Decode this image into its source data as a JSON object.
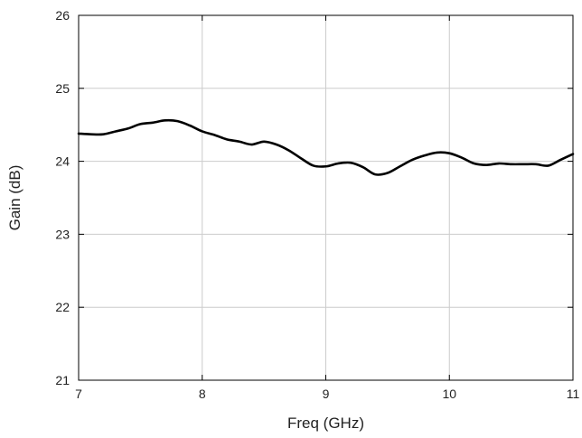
{
  "chart_data": {
    "type": "line",
    "title": "",
    "xlabel": "Freq (GHz)",
    "ylabel": "Gain (dB)",
    "xlim": [
      7,
      11
    ],
    "ylim": [
      21,
      26
    ],
    "xticks": [
      7,
      8,
      9,
      10,
      11
    ],
    "yticks": [
      21,
      22,
      23,
      24,
      25,
      26
    ],
    "xtick_labels": [
      "7",
      "8",
      "9",
      "10",
      "11"
    ],
    "ytick_labels": [
      "21",
      "22",
      "23",
      "24",
      "25",
      "26"
    ],
    "grid": true,
    "line_color": "#000000",
    "grid_color": "#cccccc",
    "series": [
      {
        "x": [
          7.0,
          7.1,
          7.2,
          7.3,
          7.4,
          7.5,
          7.6,
          7.7,
          7.8,
          7.9,
          8.0,
          8.1,
          8.2,
          8.3,
          8.4,
          8.5,
          8.6,
          8.7,
          8.8,
          8.9,
          9.0,
          9.1,
          9.2,
          9.3,
          9.4,
          9.5,
          9.6,
          9.7,
          9.8,
          9.9,
          10.0,
          10.1,
          10.2,
          10.3,
          10.4,
          10.5,
          10.6,
          10.7,
          10.8,
          10.9,
          11.0
        ],
        "values": [
          24.38,
          24.37,
          24.37,
          24.41,
          24.45,
          24.51,
          24.53,
          24.56,
          24.55,
          24.49,
          24.41,
          24.36,
          24.3,
          24.27,
          24.23,
          24.27,
          24.23,
          24.15,
          24.04,
          23.94,
          23.93,
          23.97,
          23.98,
          23.92,
          23.82,
          23.84,
          23.93,
          24.02,
          24.08,
          24.12,
          24.11,
          24.05,
          23.97,
          23.95,
          23.97,
          23.96,
          23.96,
          23.96,
          23.94,
          24.02,
          24.1
        ]
      }
    ]
  }
}
